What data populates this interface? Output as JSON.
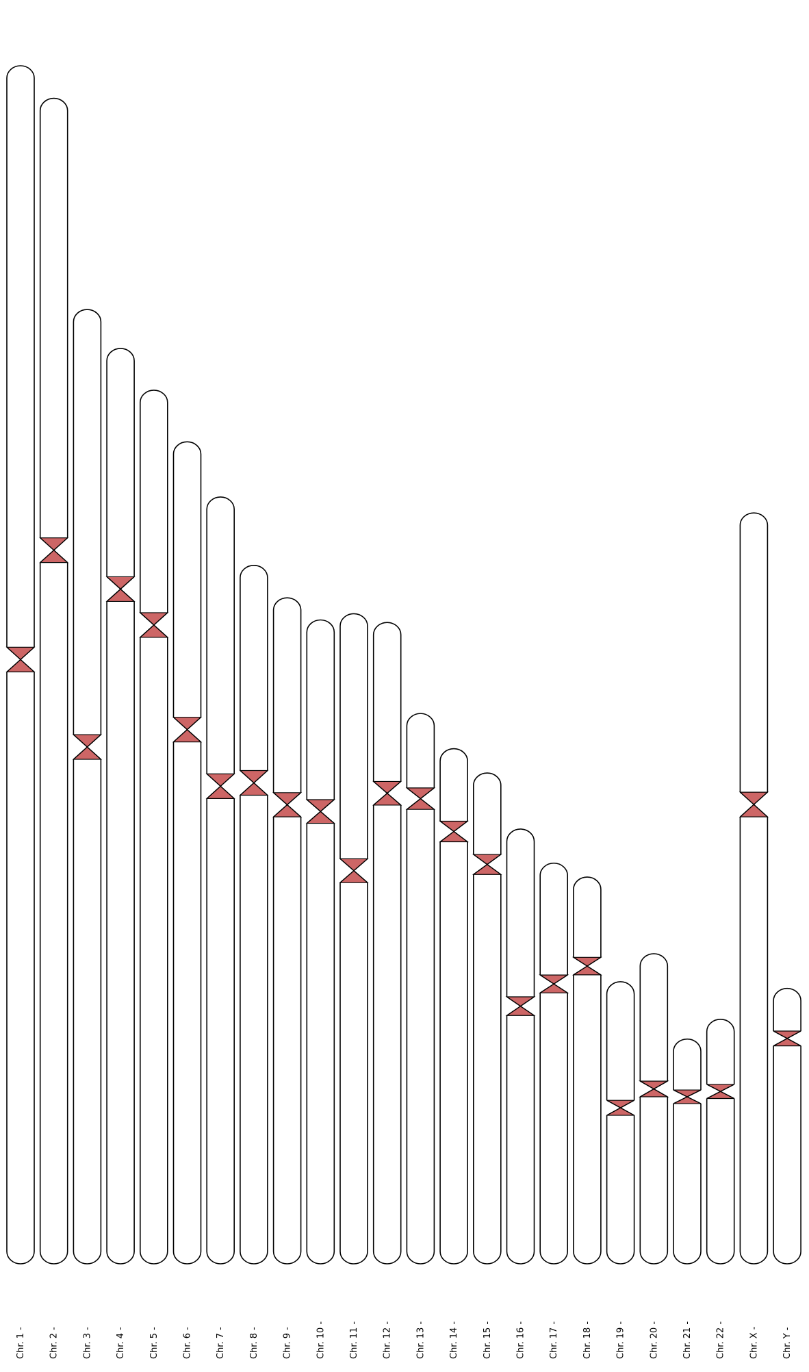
{
  "colors": {
    "centromere": "#cd6666",
    "outline": "#000000",
    "background": "#ffffff"
  },
  "chromosomes": [
    {
      "label": "Chr. 1 -",
      "length": 248.96,
      "centromere": 123.4
    },
    {
      "label": "Chr. 2 -",
      "length": 242.19,
      "centromere": 93.9
    },
    {
      "label": "Chr. 3 -",
      "length": 198.3,
      "centromere": 90.9
    },
    {
      "label": "Chr. 4 -",
      "length": 190.21,
      "centromere": 50.0
    },
    {
      "label": "Chr. 5 -",
      "length": 181.54,
      "centromere": 48.8
    },
    {
      "label": "Chr. 6 -",
      "length": 170.81,
      "centromere": 59.8
    },
    {
      "label": "Chr. 7 -",
      "length": 159.35,
      "centromere": 60.1
    },
    {
      "label": "Chr. 8 -",
      "length": 145.14,
      "centromere": 45.2
    },
    {
      "label": "Chr. 9 -",
      "length": 138.39,
      "centromere": 43.0
    },
    {
      "label": "Chr. 10 -",
      "length": 133.8,
      "centromere": 39.8
    },
    {
      "label": "Chr. 11 -",
      "length": 135.09,
      "centromere": 53.4
    },
    {
      "label": "Chr. 12 -",
      "length": 133.28,
      "centromere": 35.5
    },
    {
      "label": "Chr. 13 -",
      "length": 114.36,
      "centromere": 17.7
    },
    {
      "label": "Chr. 14 -",
      "length": 107.04,
      "centromere": 17.2
    },
    {
      "label": "Chr. 15 -",
      "length": 101.99,
      "centromere": 19.0
    },
    {
      "label": "Chr. 16 -",
      "length": 90.34,
      "centromere": 36.8
    },
    {
      "label": "Chr. 17 -",
      "length": 83.26,
      "centromere": 25.1
    },
    {
      "label": "Chr. 18 -",
      "length": 80.37,
      "centromere": 18.5
    },
    {
      "label": "Chr. 19 -",
      "length": 58.62,
      "centromere": 26.2
    },
    {
      "label": "Chr. 20 -",
      "length": 64.44,
      "centromere": 28.1
    },
    {
      "label": "Chr. 21 -",
      "length": 46.71,
      "centromere": 12.0
    },
    {
      "label": "Chr. 22 -",
      "length": 50.82,
      "centromere": 15.0
    },
    {
      "label": "Chr. X -",
      "length": 156.04,
      "centromere": 60.6
    },
    {
      "label": "Chr. Y -",
      "length": 57.23,
      "centromere": 10.4
    }
  ]
}
